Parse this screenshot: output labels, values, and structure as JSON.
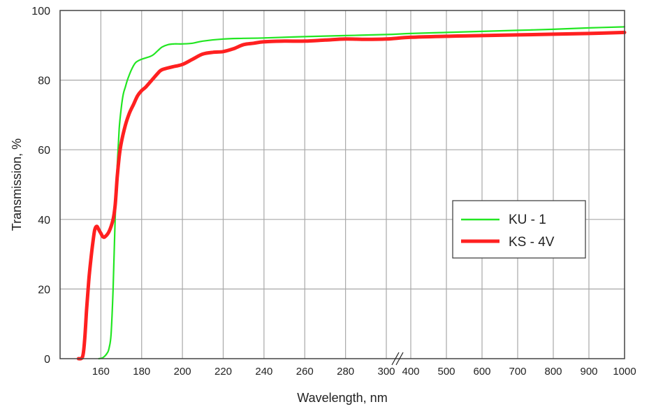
{
  "chart_data": {
    "type": "line",
    "title": "",
    "xlabel": "Wavelength, nm",
    "ylabel": "Transmission, %",
    "ylim": [
      0,
      100
    ],
    "grid": true,
    "legend_position": "right",
    "axis_break": "between 300 and 400 nm",
    "x_ticks": [
      "160",
      "180",
      "200",
      "220",
      "240",
      "260",
      "280",
      "300",
      "400",
      "500",
      "600",
      "700",
      "800",
      "900",
      "1000"
    ],
    "y_ticks": [
      "0",
      "20",
      "40",
      "60",
      "80",
      "100"
    ],
    "series": [
      {
        "name": "KU - 1",
        "color": "#22e622",
        "x": [
          159,
          161,
          163,
          164,
          165,
          166,
          167,
          168,
          169,
          170,
          171,
          172,
          173,
          175,
          177,
          180,
          185,
          188,
          190,
          193,
          196,
          200,
          205,
          210,
          220,
          230,
          240,
          260,
          280,
          300,
          400,
          500,
          600,
          700,
          800,
          900,
          1000
        ],
        "y": [
          0,
          0.3,
          1.5,
          3,
          7,
          20,
          40,
          55,
          66,
          72,
          76,
          78,
          80,
          83,
          85,
          86,
          87,
          88.5,
          89.5,
          90.2,
          90.4,
          90.4,
          90.6,
          91.2,
          91.8,
          92,
          92.1,
          92.5,
          92.8,
          93.1,
          93.4,
          93.7,
          94,
          94.3,
          94.6,
          95,
          95.3
        ]
      },
      {
        "name": "KS - 4V",
        "color": "#ff2020",
        "x": [
          149,
          151,
          152,
          153,
          154,
          155,
          156,
          157,
          158,
          159,
          160,
          161,
          162,
          164,
          166,
          167,
          168,
          169,
          170,
          172,
          174,
          176,
          178,
          180,
          182,
          185,
          188,
          190,
          195,
          200,
          205,
          210,
          215,
          220,
          225,
          230,
          235,
          240,
          250,
          260,
          270,
          280,
          290,
          300,
          400,
          500,
          600,
          700,
          800,
          900,
          1000
        ],
        "y": [
          0,
          0.5,
          5,
          14,
          22,
          28,
          33,
          37,
          38,
          37,
          36,
          35,
          35,
          36.5,
          40,
          44,
          52,
          58,
          62,
          67,
          70.5,
          73,
          75.5,
          77,
          78,
          80,
          82,
          83,
          83.8,
          84.5,
          86,
          87.5,
          88,
          88.2,
          89,
          90.2,
          90.6,
          91,
          91.2,
          91.2,
          91.5,
          91.8,
          91.7,
          91.8,
          92.3,
          92.6,
          92.8,
          93,
          93.2,
          93.4,
          93.7
        ]
      }
    ]
  }
}
